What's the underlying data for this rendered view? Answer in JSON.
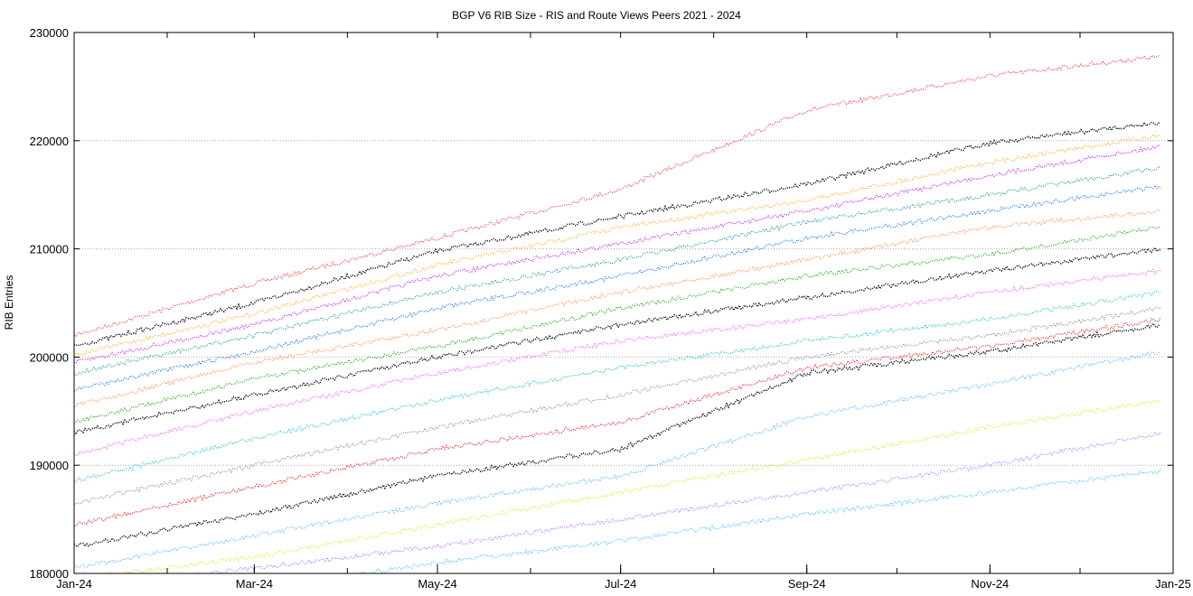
{
  "chart_data": {
    "type": "scatter",
    "title": "BGP V6 RIB Size - RIS and Route Views Peers 2021 - 2024",
    "xlabel": "",
    "ylabel": "RIB Entries",
    "xlim": [
      "2024-01-01",
      "2025-01-01"
    ],
    "ylim": [
      180000,
      230000
    ],
    "x_ticks": [
      {
        "date": "2024-01-01",
        "label": "Jan-24"
      },
      {
        "date": "2024-03-01",
        "label": "Mar-24"
      },
      {
        "date": "2024-05-01",
        "label": "May-24"
      },
      {
        "date": "2024-07-01",
        "label": "Jul-24"
      },
      {
        "date": "2024-09-01",
        "label": "Sep-24"
      },
      {
        "date": "2024-11-01",
        "label": "Nov-24"
      },
      {
        "date": "2025-01-01",
        "label": "Jan-25"
      }
    ],
    "y_ticks": [
      180000,
      190000,
      200000,
      210000,
      220000,
      230000
    ],
    "grid": "horizontal dotted",
    "legend": "none",
    "x": [
      "2024-01-01",
      "2024-03-01",
      "2024-05-01",
      "2024-07-01",
      "2024-09-01",
      "2024-11-01",
      "2024-12-28"
    ],
    "series": [
      {
        "color": "#ff2020",
        "values": [
          202000,
          206800,
          211000,
          215500,
          222800,
          226000,
          227800
        ]
      },
      {
        "color": "#000000",
        "values": [
          201000,
          205000,
          209800,
          213000,
          216000,
          219800,
          221700
        ]
      },
      {
        "color": "#ffa500",
        "values": [
          200200,
          204000,
          208500,
          212000,
          214500,
          218000,
          220500
        ]
      },
      {
        "color": "#c000ff",
        "values": [
          199500,
          203000,
          207500,
          210500,
          213500,
          216800,
          219500
        ]
      },
      {
        "color": "#009090",
        "values": [
          198500,
          202000,
          206000,
          209000,
          212500,
          215000,
          217500
        ]
      },
      {
        "color": "#0060ff",
        "values": [
          197000,
          200500,
          204500,
          207500,
          211000,
          213500,
          215800
        ]
      },
      {
        "color": "#ff8040",
        "values": [
          195500,
          199500,
          202500,
          206000,
          209000,
          212000,
          213500
        ]
      },
      {
        "color": "#00a000",
        "values": [
          194000,
          198000,
          201000,
          204500,
          207500,
          209500,
          212000
        ]
      },
      {
        "color": "#000000",
        "values": [
          193000,
          196500,
          200000,
          203000,
          205500,
          208000,
          210000
        ]
      },
      {
        "color": "#ff40ff",
        "values": [
          191000,
          195000,
          198500,
          201500,
          203500,
          206000,
          208000
        ]
      },
      {
        "color": "#00c0c0",
        "values": [
          188500,
          192500,
          196000,
          199000,
          201500,
          203500,
          206000
        ]
      },
      {
        "color": "#808080",
        "values": [
          186500,
          190000,
          193500,
          196500,
          200000,
          202000,
          204500
        ]
      },
      {
        "color": "#ff0000",
        "values": [
          184500,
          188000,
          191500,
          194000,
          199000,
          201000,
          203500
        ]
      },
      {
        "color": "#000000",
        "values": [
          182500,
          185500,
          189000,
          191500,
          198500,
          200500,
          203000
        ]
      },
      {
        "color": "#40b0ff",
        "values": [
          180500,
          183500,
          186500,
          189000,
          194500,
          197500,
          200500
        ]
      },
      {
        "color": "#e0e000",
        "values": [
          179500,
          181500,
          184500,
          187500,
          190500,
          193500,
          196000
        ]
      },
      {
        "color": "#b060ff",
        "values": [
          178500,
          180500,
          182500,
          185000,
          187500,
          190000,
          193000
        ]
      },
      {
        "color": "#20c0ff",
        "values": [
          177000,
          178500,
          181000,
          183000,
          185500,
          187500,
          189500
        ]
      }
    ]
  }
}
